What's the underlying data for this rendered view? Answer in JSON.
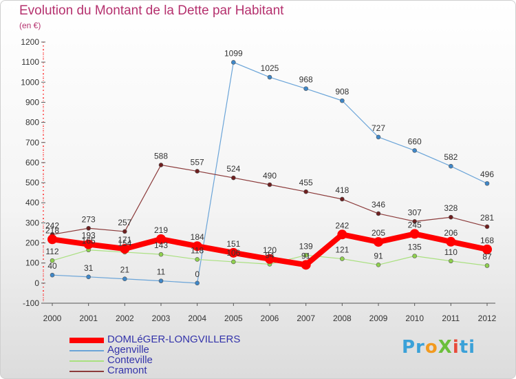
{
  "title": "Evolution du Montant de la Dette par Habitant",
  "unit": "(en €)",
  "logo": "ProXiti",
  "chart_data": {
    "type": "line",
    "x": [
      "2000",
      "2001",
      "2002",
      "2003",
      "2004",
      "2005",
      "2006",
      "2007",
      "2008",
      "2009",
      "2010",
      "2011",
      "2012"
    ],
    "ylim": [
      -100,
      1200
    ],
    "yticks": [
      -100,
      0,
      100,
      200,
      300,
      400,
      500,
      600,
      700,
      800,
      900,
      1000,
      1100,
      1200
    ],
    "grid": false,
    "legend_position": "bottom-left",
    "series": [
      {
        "name": "DOMLéGER-LONGVILLERS",
        "color": "#ff0000",
        "width": 8,
        "values": [
          218,
          193,
          171,
          219,
          184,
          151,
          120,
          91,
          242,
          205,
          245,
          206,
          168
        ],
        "labels": [
          "218",
          "193",
          "171",
          "219",
          "184",
          "151",
          "120",
          "91",
          "242",
          "205",
          "245",
          "206",
          "168"
        ]
      },
      {
        "name": "Agenville",
        "color": "#6aa4d8",
        "width": 1.2,
        "values": [
          40,
          31,
          21,
          11,
          0,
          1099,
          1025,
          968,
          908,
          727,
          660,
          582,
          496
        ],
        "labels": [
          "40",
          "31",
          "21",
          "11",
          "0",
          "1099",
          "1025",
          "968",
          "908",
          "727",
          "660",
          "582",
          "496"
        ]
      },
      {
        "name": "Conteville",
        "color": "#a9e07f",
        "width": 1.2,
        "values": [
          112,
          165,
          154,
          143,
          118,
          106,
          94,
          139,
          121,
          91,
          135,
          110,
          87
        ],
        "labels": [
          "112",
          "165",
          "154",
          "143",
          "118",
          "106",
          "94",
          "139",
          "121",
          "91",
          "135",
          "110",
          "87"
        ]
      },
      {
        "name": "Cramont",
        "color": "#8b3a3a",
        "width": 1.2,
        "values": [
          242,
          273,
          257,
          588,
          557,
          524,
          490,
          455,
          418,
          346,
          307,
          328,
          281
        ],
        "labels": [
          "242",
          "273",
          "257",
          "588",
          "557",
          "524",
          "490",
          "455",
          "418",
          "346",
          "307",
          "328",
          "281"
        ]
      }
    ]
  }
}
